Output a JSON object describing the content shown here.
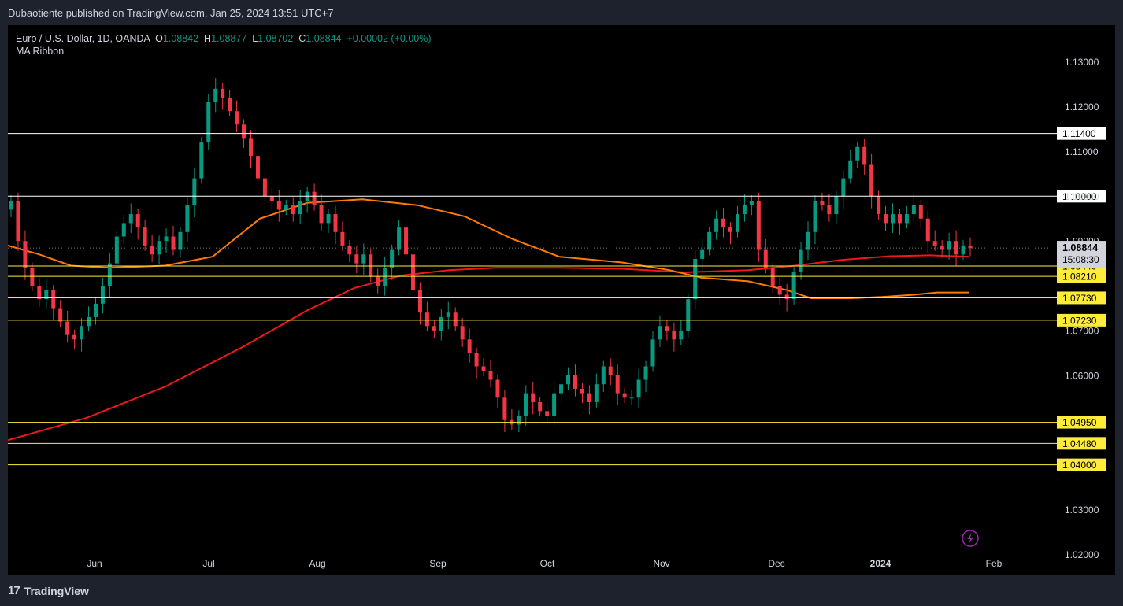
{
  "header": {
    "publish_line": "Dubaotiente published on TradingView.com, Jan 25, 2024 13:51 UTC+7"
  },
  "legend": {
    "symbol": "Euro / U.S. Dollar, 1D, OANDA",
    "open_label": "O",
    "open": "1.08842",
    "high_label": "H",
    "high": "1.08877",
    "low_label": "L",
    "low": "1.08702",
    "close_label": "C",
    "close": "1.08844",
    "change": "+0.00002 (+0.00%)",
    "indicator": "MA Ribbon"
  },
  "footer": {
    "brand": "TradingView",
    "logo": "17"
  },
  "colors": {
    "up": "#089981",
    "down": "#f23645",
    "hline_white": "#ffffff",
    "hline_yellow": "#ffeb3b",
    "ma_orange": "#ff7b00",
    "ma_red": "#f01818",
    "axis_text": "#d1d4dc",
    "price_tag": "#d1d4dc"
  },
  "chart_data": {
    "type": "candlestick",
    "title": "Euro / U.S. Dollar, 1D, OANDA",
    "ylim": [
      1.0155,
      1.1382
    ],
    "y_ticks": [
      "1.13000",
      "1.12000",
      "1.11000",
      "1.10000",
      "1.09000",
      "1.07000",
      "1.06000",
      "1.03000",
      "1.02000"
    ],
    "x_tick_labels": [
      "Jun",
      "Jul",
      "Aug",
      "Sep",
      "Oct",
      "Nov",
      "Dec",
      "2024",
      "Feb"
    ],
    "last_price": "1.08844",
    "countdown": "15:08:30",
    "horizontal_levels": [
      {
        "value": 1.114,
        "label": "1.11400",
        "color": "white"
      },
      {
        "value": 1.1,
        "label": "1.10000",
        "color": "white"
      },
      {
        "value": 1.0844,
        "label": "1.08440",
        "color": "yellow"
      },
      {
        "value": 1.0821,
        "label": "1.08210",
        "color": "yellow"
      },
      {
        "value": 1.0773,
        "label": "1.07730",
        "color": "yellow"
      },
      {
        "value": 1.0723,
        "label": "1.07230",
        "color": "yellow"
      },
      {
        "value": 1.0495,
        "label": "1.04950",
        "color": "yellow"
      },
      {
        "value": 1.0448,
        "label": "1.04480",
        "color": "yellow"
      },
      {
        "value": 1.04,
        "label": "1.04000",
        "color": "yellow"
      }
    ],
    "close_series": [
      1.099,
      1.09,
      1.084,
      1.08,
      1.077,
      1.079,
      1.075,
      1.072,
      1.069,
      1.068,
      1.071,
      1.073,
      1.076,
      1.08,
      1.085,
      1.091,
      1.094,
      1.096,
      1.093,
      1.089,
      1.087,
      1.09,
      1.091,
      1.088,
      1.092,
      1.098,
      1.104,
      1.112,
      1.121,
      1.124,
      1.122,
      1.119,
      1.116,
      1.113,
      1.109,
      1.104,
      1.1,
      1.099,
      1.097,
      1.098,
      1.096,
      1.099,
      1.101,
      1.098,
      1.094,
      1.096,
      1.092,
      1.089,
      1.087,
      1.085,
      1.087,
      1.082,
      1.08,
      1.084,
      1.088,
      1.093,
      1.087,
      1.079,
      1.074,
      1.071,
      1.07,
      1.073,
      1.074,
      1.071,
      1.068,
      1.065,
      1.062,
      1.061,
      1.059,
      1.055,
      1.05,
      1.049,
      1.051,
      1.056,
      1.054,
      1.052,
      1.051,
      1.056,
      1.058,
      1.06,
      1.057,
      1.056,
      1.054,
      1.058,
      1.062,
      1.06,
      1.056,
      1.055,
      1.055,
      1.059,
      1.062,
      1.068,
      1.071,
      1.07,
      1.068,
      1.07,
      1.077,
      1.086,
      1.088,
      1.092,
      1.095,
      1.093,
      1.092,
      1.096,
      1.098,
      1.099,
      1.088,
      1.084,
      1.08,
      1.078,
      1.077,
      1.083,
      1.088,
      1.092,
      1.099,
      1.098,
      1.096,
      1.1,
      1.104,
      1.108,
      1.111,
      1.107,
      1.1,
      1.096,
      1.094,
      1.096,
      1.094,
      1.096,
      1.098,
      1.095,
      1.09,
      1.089,
      1.088,
      1.09,
      1.087,
      1.089,
      1.0884
    ],
    "ma_orange_points": [
      [
        0,
        1.089
      ],
      [
        40,
        1.087
      ],
      [
        80,
        1.0845
      ],
      [
        130,
        1.084
      ],
      [
        200,
        1.0845
      ],
      [
        260,
        1.0865
      ],
      [
        320,
        1.095
      ],
      [
        380,
        1.0985
      ],
      [
        450,
        1.0993
      ],
      [
        520,
        1.098
      ],
      [
        580,
        1.0955
      ],
      [
        640,
        1.0905
      ],
      [
        700,
        1.0865
      ],
      [
        780,
        1.0852
      ],
      [
        840,
        1.0835
      ],
      [
        880,
        1.0818
      ],
      [
        940,
        1.081
      ],
      [
        990,
        1.079
      ],
      [
        1020,
        1.0772
      ],
      [
        1070,
        1.0772
      ],
      [
        1110,
        1.0775
      ],
      [
        1150,
        1.078
      ],
      [
        1180,
        1.0785
      ],
      [
        1220,
        1.0785
      ]
    ],
    "ma_red_points": [
      [
        0,
        1.0455
      ],
      [
        100,
        1.0505
      ],
      [
        200,
        1.0575
      ],
      [
        300,
        1.0665
      ],
      [
        380,
        1.0745
      ],
      [
        440,
        1.0795
      ],
      [
        500,
        1.0823
      ],
      [
        560,
        1.0835
      ],
      [
        620,
        1.084
      ],
      [
        700,
        1.084
      ],
      [
        780,
        1.0838
      ],
      [
        860,
        1.083
      ],
      [
        940,
        1.0835
      ],
      [
        1000,
        1.0845
      ],
      [
        1060,
        1.0858
      ],
      [
        1120,
        1.0866
      ],
      [
        1170,
        1.0868
      ],
      [
        1220,
        1.0865
      ]
    ]
  }
}
